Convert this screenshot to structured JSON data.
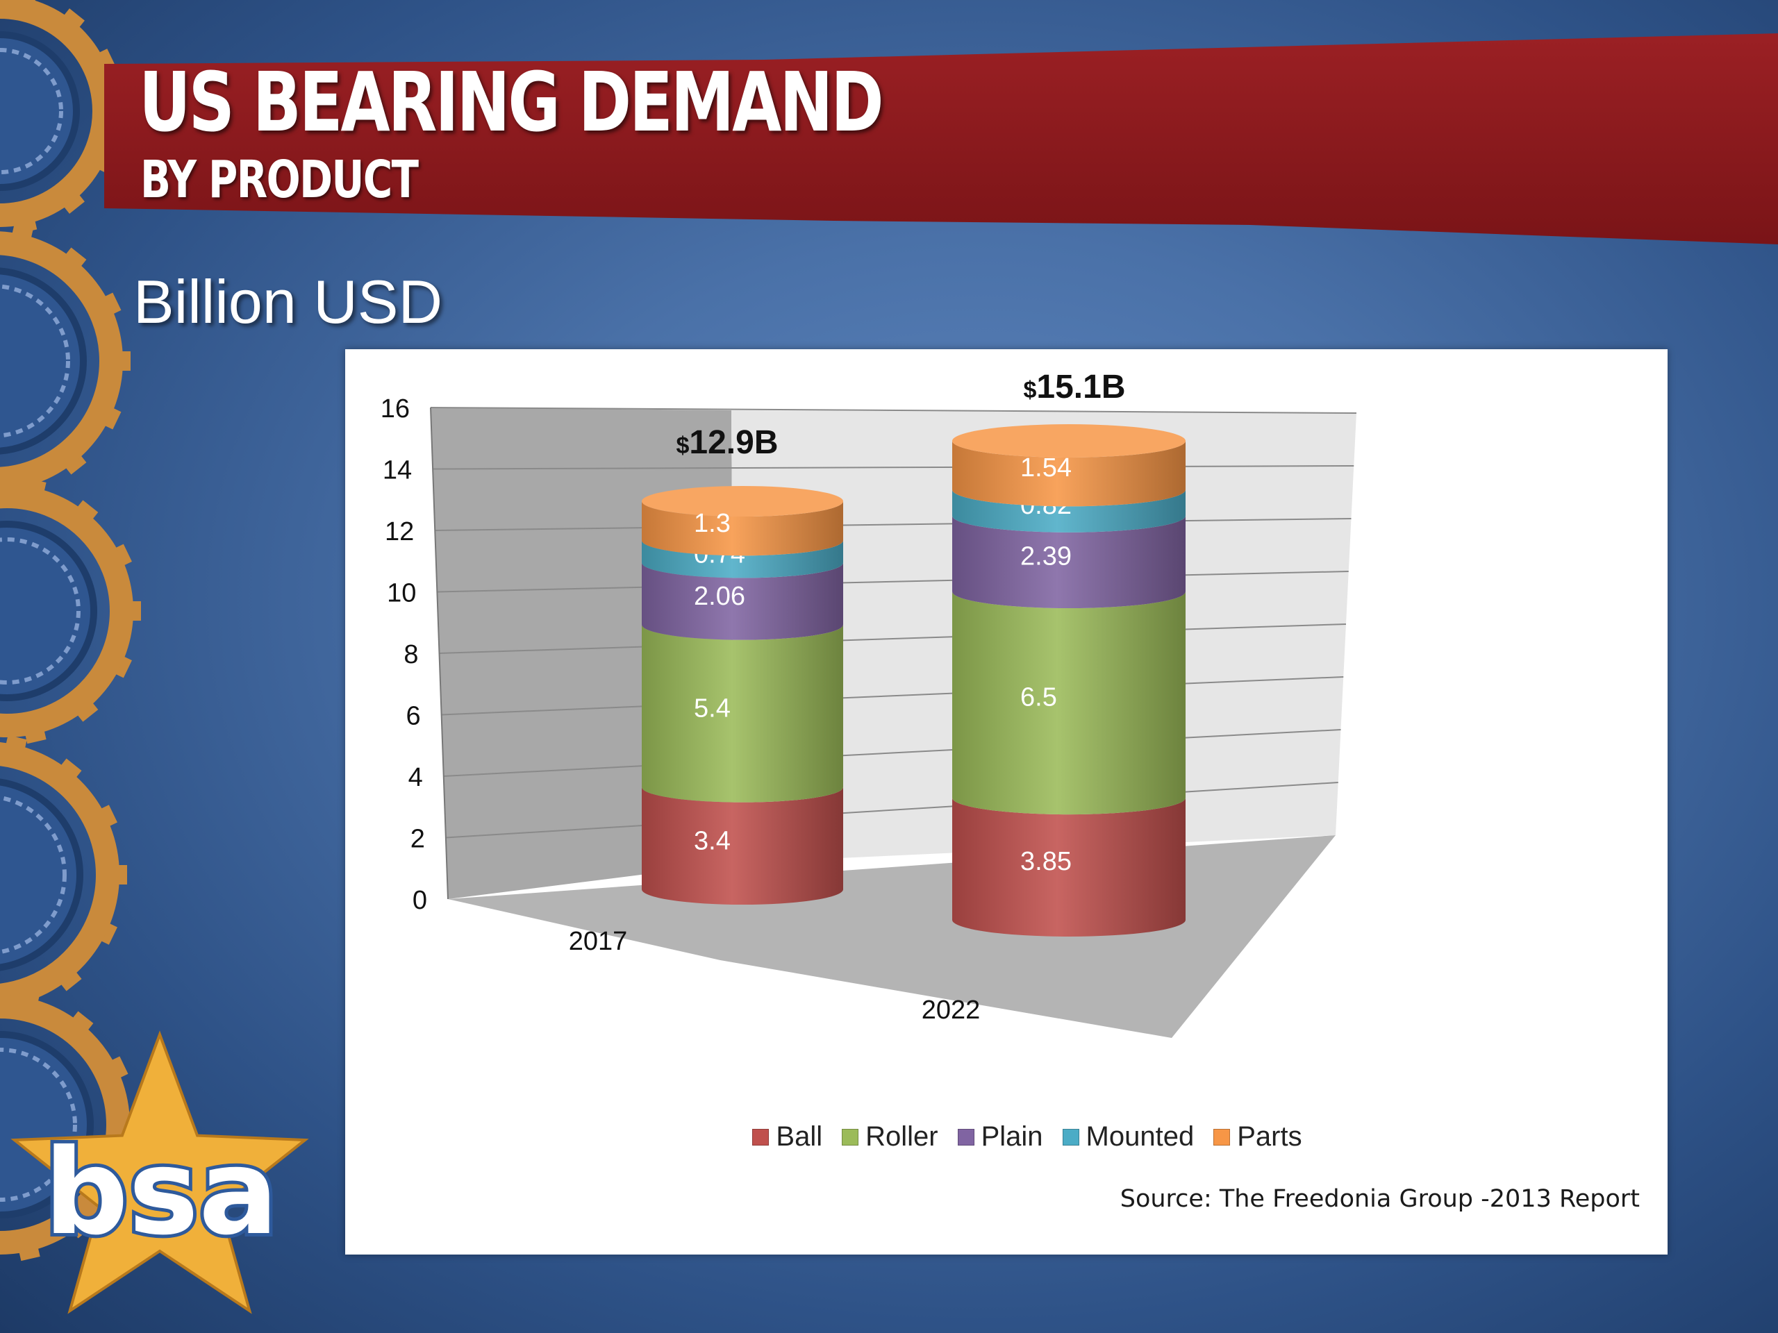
{
  "slide": {
    "title": "US BEARING DEMAND",
    "subtitle": "BY PRODUCT",
    "units": "Billion USD",
    "source": "Source: The Freedonia Group -2013 Report",
    "logo_text": "bsa"
  },
  "colors": {
    "banner": "#8d1a1d",
    "Ball": "#c0504d",
    "Roller": "#9bbb59",
    "Plain": "#8064a2",
    "Mounted": "#4bacc6",
    "Parts": "#f79646",
    "gear": "#c98a3c",
    "logo_star": "#f0b03a",
    "logo_letters": "#2e5a9c"
  },
  "chart_data": {
    "type": "bar",
    "stacked": true,
    "style": "3d-cylinder",
    "categories": [
      "2017",
      "2022"
    ],
    "ylim": [
      0,
      16
    ],
    "yticks": [
      "0",
      "2",
      "4",
      "6",
      "8",
      "10",
      "12",
      "14",
      "16"
    ],
    "grid": true,
    "legend_position": "bottom",
    "series": [
      {
        "name": "Ball",
        "values": [
          3.4,
          3.85
        ],
        "labels": [
          "3.4",
          "3.85"
        ]
      },
      {
        "name": "Roller",
        "values": [
          5.4,
          6.5
        ],
        "labels": [
          "5.4",
          "6.5"
        ]
      },
      {
        "name": "Plain",
        "values": [
          2.06,
          2.39
        ],
        "labels": [
          "2.06",
          "2.39"
        ]
      },
      {
        "name": "Mounted",
        "values": [
          0.74,
          0.82
        ],
        "labels": [
          "0.74",
          "0.82"
        ]
      },
      {
        "name": "Parts",
        "values": [
          1.3,
          1.54
        ],
        "labels": [
          "1.3",
          "1.54"
        ]
      }
    ],
    "totals": [
      {
        "prefix": "$",
        "value": "12.9B"
      },
      {
        "prefix": "$",
        "value": "15.1B"
      }
    ]
  }
}
